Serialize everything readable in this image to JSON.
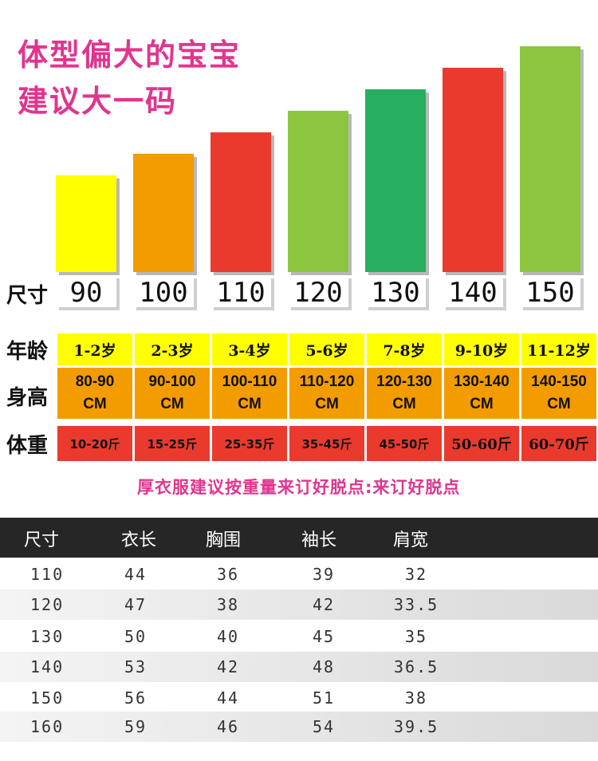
{
  "headline": {
    "line1": "体型偏大的宝宝",
    "line2": "建议大一码"
  },
  "chart_data": {
    "type": "bar",
    "row_label": "尺寸",
    "categories": [
      "90",
      "100",
      "110",
      "120",
      "130",
      "140",
      "150"
    ],
    "values": [
      90,
      100,
      110,
      120,
      130,
      140,
      150
    ],
    "colors": [
      "#ffff00",
      "#f39c00",
      "#ea3a2e",
      "#8cc63f",
      "#27ae60",
      "#ea3a2e",
      "#8cc63f"
    ],
    "ylim": [
      45,
      150
    ]
  },
  "info": {
    "age_label": "年龄",
    "height_label": "身高",
    "weight_label": "体重",
    "ages": [
      "1-2岁",
      "2-3岁",
      "3-4岁",
      "5-6岁",
      "7-8岁",
      "9-10岁",
      "11-12岁"
    ],
    "heights": [
      "80-90\nCM",
      "90-100\nCM",
      "100-110\nCM",
      "110-120\nCM",
      "120-130\nCM",
      "130-140\nCM",
      "140-150\nCM"
    ],
    "weights": [
      "10-20斤",
      "15-25斤",
      "25-35斤",
      "35-45斤",
      "45-50斤",
      "50-60斤",
      "60-70斤"
    ]
  },
  "note": "厚衣服建议按重量来订好脱点:来订好脱点",
  "table": {
    "headers": [
      "尺寸",
      "衣长",
      "胸围",
      "袖长",
      "肩宽"
    ],
    "rows": [
      [
        "110",
        "44",
        "36",
        "39",
        "32"
      ],
      [
        "120",
        "47",
        "38",
        "42",
        "33.5"
      ],
      [
        "130",
        "50",
        "40",
        "45",
        "35"
      ],
      [
        "140",
        "53",
        "42",
        "48",
        "36.5"
      ],
      [
        "150",
        "56",
        "44",
        "51",
        "38"
      ],
      [
        "160",
        "59",
        "46",
        "54",
        "39.5"
      ]
    ]
  }
}
